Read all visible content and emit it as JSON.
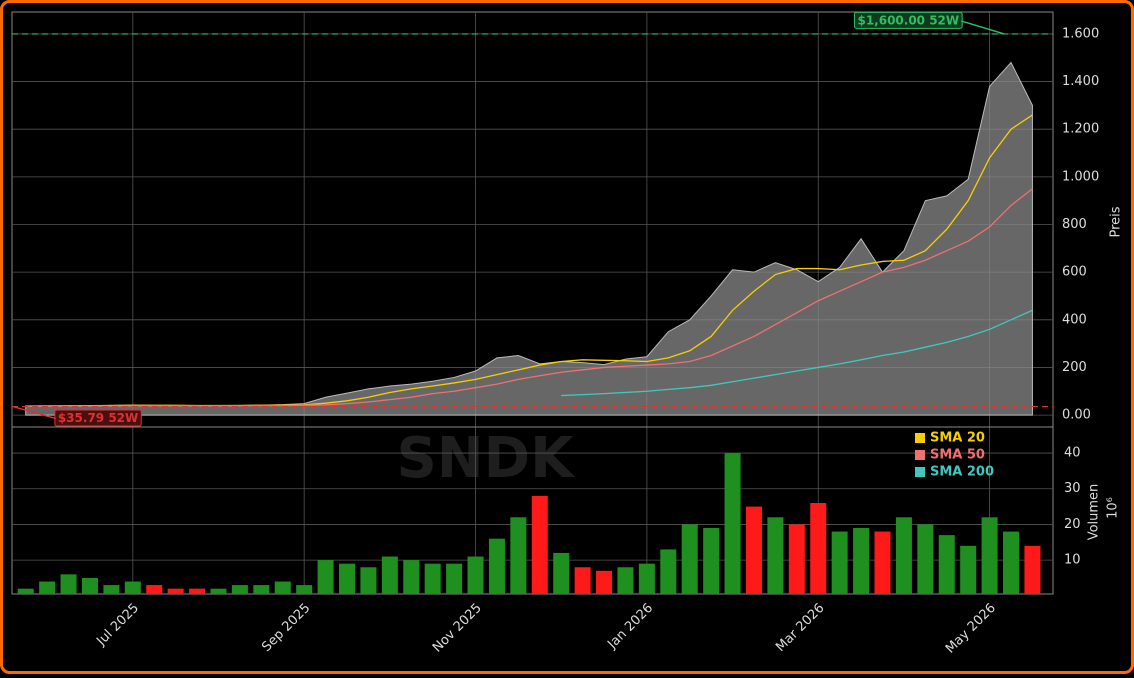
{
  "chart_data": {
    "type": "area",
    "ylabel": "Preis",
    "watermark": "SNDK",
    "x": [
      -1.25,
      -1,
      -0.75,
      -0.5,
      -0.25,
      0,
      0.25,
      0.5,
      0.75,
      1,
      1.25,
      1.5,
      1.75,
      2,
      2.25,
      2.5,
      2.75,
      3,
      3.25,
      3.5,
      3.75,
      4,
      4.25,
      4.5,
      4.75,
      5,
      5.25,
      5.5,
      5.75,
      6,
      6.25,
      6.5,
      6.75,
      7,
      7.25,
      7.5,
      7.75,
      8,
      8.25,
      8.5,
      8.75,
      9,
      9.25,
      9.5,
      9.75,
      10,
      10.25,
      10.5
    ],
    "values": [
      38,
      39,
      39,
      40,
      41,
      42,
      41,
      40,
      39,
      40,
      41,
      42,
      44,
      48,
      75,
      92,
      110,
      122,
      130,
      142,
      158,
      185,
      240,
      250,
      215,
      225,
      220,
      212,
      235,
      245,
      350,
      400,
      500,
      610,
      600,
      640,
      610,
      560,
      620,
      740,
      600,
      690,
      900,
      920,
      990,
      1380,
      1480,
      1300
    ],
    "color": "#8a8a8a",
    "series": [
      {
        "name": "SMA 20",
        "color": "#f5d000",
        "values": [
          38,
          38,
          39,
          39,
          40,
          41,
          41,
          41,
          40,
          40,
          40,
          41,
          42,
          43,
          50,
          60,
          75,
          95,
          110,
          122,
          135,
          150,
          170,
          190,
          210,
          225,
          232,
          230,
          228,
          225,
          240,
          270,
          330,
          440,
          520,
          590,
          615,
          615,
          610,
          630,
          645,
          650,
          690,
          780,
          900,
          1080,
          1200,
          1260
        ]
      },
      {
        "name": "SMA 50",
        "color": "#f07070",
        "values": [
          37,
          37,
          38,
          38,
          38,
          39,
          39,
          39,
          39,
          39,
          39,
          40,
          40,
          41,
          43,
          48,
          55,
          65,
          75,
          90,
          100,
          115,
          130,
          150,
          165,
          180,
          190,
          200,
          205,
          210,
          215,
          225,
          250,
          290,
          330,
          380,
          430,
          480,
          520,
          560,
          600,
          620,
          650,
          690,
          730,
          790,
          880,
          950
        ]
      },
      {
        "name": "SMA 200",
        "color": "#40c8c0",
        "values": [
          null,
          null,
          null,
          null,
          null,
          null,
          null,
          null,
          null,
          null,
          null,
          null,
          null,
          null,
          null,
          null,
          null,
          null,
          null,
          null,
          null,
          null,
          null,
          null,
          null,
          82,
          86,
          90,
          95,
          100,
          108,
          115,
          125,
          140,
          155,
          170,
          185,
          200,
          215,
          232,
          250,
          265,
          285,
          305,
          330,
          360,
          400,
          440
        ]
      }
    ],
    "xlim": [
      -1.41,
      10.74
    ],
    "xticks": [
      {
        "value": 0,
        "label": "Jul 2025"
      },
      {
        "value": 2,
        "label": "Sep 2025"
      },
      {
        "value": 4,
        "label": "Nov 2025"
      },
      {
        "value": 6,
        "label": "Jan 2026"
      },
      {
        "value": 8,
        "label": "Mar 2026"
      },
      {
        "value": 10,
        "label": "May 2026"
      }
    ],
    "ylim": [
      -50,
      1692
    ],
    "yticks": [
      {
        "value": 0,
        "label": "0.00"
      },
      200,
      400,
      600,
      800,
      {
        "value": 1000,
        "label": "1.000"
      },
      {
        "value": 1200,
        "label": "1.200"
      },
      {
        "value": 1400,
        "label": "1.400"
      },
      {
        "value": 1600,
        "label": "1.600"
      }
    ],
    "grid": true,
    "annotations": [
      {
        "text": "$1,600.00 52W",
        "value": 1600,
        "x": 10.17,
        "color": "#2fbf5f"
      },
      {
        "text": "$35.79 52W",
        "value": 35.79,
        "x": -1.4,
        "color": "#e03030"
      }
    ],
    "volume": {
      "ylabel": "Volumen",
      "multiplier": "10⁶",
      "values": [
        2,
        4,
        6,
        5,
        3,
        4,
        3,
        2,
        2,
        2,
        3,
        3,
        4,
        3,
        10,
        9,
        8,
        11,
        10,
        9,
        9,
        11,
        16,
        22,
        28,
        12,
        8,
        7,
        8,
        9,
        13,
        20,
        19,
        40,
        25,
        22,
        20,
        26,
        18,
        19,
        18,
        22,
        20,
        17,
        14,
        22,
        18,
        14
      ],
      "ylim": [
        0.5,
        47.3
      ],
      "yticks": [
        10,
        20,
        30,
        40
      ],
      "up_color": "#1f8f1f",
      "down_color": "#ff1a1a"
    }
  }
}
